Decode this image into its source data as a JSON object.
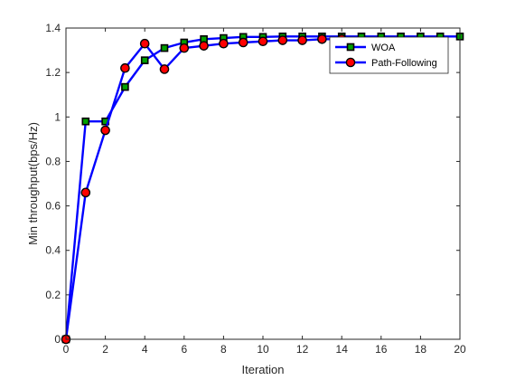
{
  "chart_data": {
    "type": "line",
    "xlabel": "Iteration",
    "ylabel": "Min throughput(bps/Hz)",
    "xlim": [
      0,
      20
    ],
    "ylim": [
      0,
      1.4
    ],
    "x_ticks": [
      "0",
      "2",
      "4",
      "6",
      "8",
      "10",
      "12",
      "14",
      "16",
      "18",
      "20"
    ],
    "y_ticks": [
      "0",
      "0.2",
      "0.4",
      "0.6",
      "0.8",
      "1",
      "1.2",
      "1.4"
    ],
    "x": [
      0,
      1,
      2,
      3,
      4,
      5,
      6,
      7,
      8,
      9,
      10,
      11,
      12,
      13,
      14,
      15,
      16,
      17,
      18,
      19,
      20
    ],
    "grid": false,
    "legend_position": "top-right",
    "series": [
      {
        "name": "WOA",
        "marker": "square",
        "line_color": "#0000ff",
        "marker_fill": "#00a000",
        "marker_edge": "#000000",
        "values": [
          0,
          0.98,
          0.98,
          1.135,
          1.255,
          1.31,
          1.335,
          1.35,
          1.355,
          1.36,
          1.36,
          1.362,
          1.362,
          1.362,
          1.362,
          1.362,
          1.362,
          1.362,
          1.362,
          1.362,
          1.362
        ]
      },
      {
        "name": "Path-Following",
        "marker": "circle",
        "line_color": "#0000ff",
        "marker_fill": "#ff0000",
        "marker_edge": "#000000",
        "values": [
          0,
          0.66,
          0.94,
          1.22,
          1.33,
          1.215,
          1.31,
          1.32,
          1.33,
          1.335,
          1.34,
          1.345,
          1.345,
          1.35,
          1.35,
          null,
          null,
          null,
          null,
          null,
          null
        ]
      }
    ]
  }
}
